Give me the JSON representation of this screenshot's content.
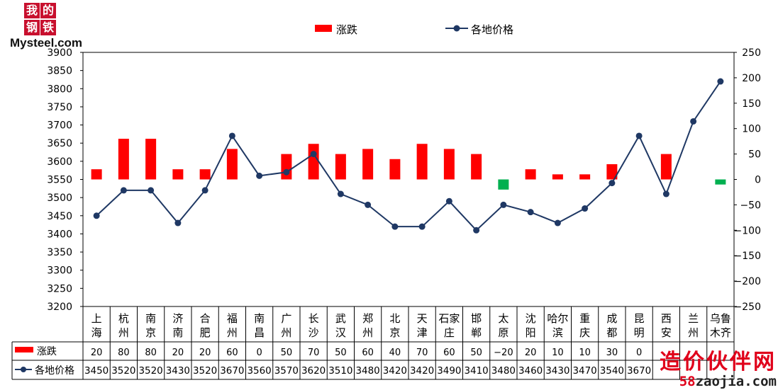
{
  "logo": {
    "chars": [
      "我",
      "的",
      "钢",
      "铁"
    ],
    "text": "Mysteel.com"
  },
  "watermark": {
    "cn": "造价伙伴网",
    "prefix": "58",
    "rest": "zaojia.com"
  },
  "colors": {
    "rise": "#ff0000",
    "fall": "#00b050",
    "line": "#1f3864",
    "grid": "#000000"
  },
  "chart_data": {
    "type": "bar",
    "categories": [
      [
        "上",
        "海"
      ],
      [
        "杭",
        "州"
      ],
      [
        "南",
        "京"
      ],
      [
        "济",
        "南"
      ],
      [
        "合",
        "肥"
      ],
      [
        "福",
        "州"
      ],
      [
        "南",
        "昌"
      ],
      [
        "广",
        "州"
      ],
      [
        "长",
        "沙"
      ],
      [
        "武",
        "汉"
      ],
      [
        "郑",
        "州"
      ],
      [
        "北",
        "京"
      ],
      [
        "天",
        "津"
      ],
      [
        "石家",
        "庄"
      ],
      [
        "邯",
        "郸"
      ],
      [
        "太",
        "原"
      ],
      [
        "沈",
        "阳"
      ],
      [
        "哈尔",
        "滨"
      ],
      [
        "重",
        "庆"
      ],
      [
        "成",
        "都"
      ],
      [
        "昆",
        "明"
      ],
      [
        "西",
        "安"
      ],
      [
        "兰",
        "州"
      ],
      [
        "乌鲁",
        "木齐"
      ]
    ],
    "series": [
      {
        "name": "涨跌",
        "kind": "bar",
        "axis": "right",
        "values": [
          20,
          80,
          80,
          20,
          20,
          60,
          0,
          50,
          70,
          50,
          60,
          40,
          70,
          60,
          50,
          -20,
          20,
          10,
          10,
          30,
          0,
          50,
          0,
          -10
        ],
        "table_labels": [
          "20",
          "80",
          "80",
          "20",
          "20",
          "60",
          "0",
          "50",
          "70",
          "50",
          "60",
          "40",
          "70",
          "60",
          "50",
          "−20",
          "20",
          "10",
          "10",
          "30",
          "0",
          "",
          "",
          ""
        ]
      },
      {
        "name": "各地价格",
        "kind": "line",
        "axis": "left",
        "values": [
          3450,
          3520,
          3520,
          3430,
          3520,
          3670,
          3560,
          3570,
          3620,
          3510,
          3480,
          3420,
          3420,
          3490,
          3410,
          3480,
          3460,
          3430,
          3470,
          3540,
          3670,
          3510,
          3710,
          3820
        ],
        "table_labels": [
          "3450",
          "3520",
          "3520",
          "3430",
          "3520",
          "3670",
          "3560",
          "3570",
          "3620",
          "3510",
          "3480",
          "3420",
          "3420",
          "3490",
          "3410",
          "3480",
          "3460",
          "3430",
          "3470",
          "3540",
          "3670",
          "",
          "",
          ""
        ]
      }
    ],
    "y_left": {
      "min": 3200,
      "max": 3900,
      "step": 50
    },
    "y_right": {
      "min": -250,
      "max": 250,
      "step": 50,
      "tick_labels": [
        "250",
        "200",
        "150",
        "100",
        "50",
        "0",
        "−50",
        "−100",
        "−150",
        "−200",
        "−250"
      ]
    },
    "legend": {
      "position": "top"
    },
    "grid": false
  }
}
